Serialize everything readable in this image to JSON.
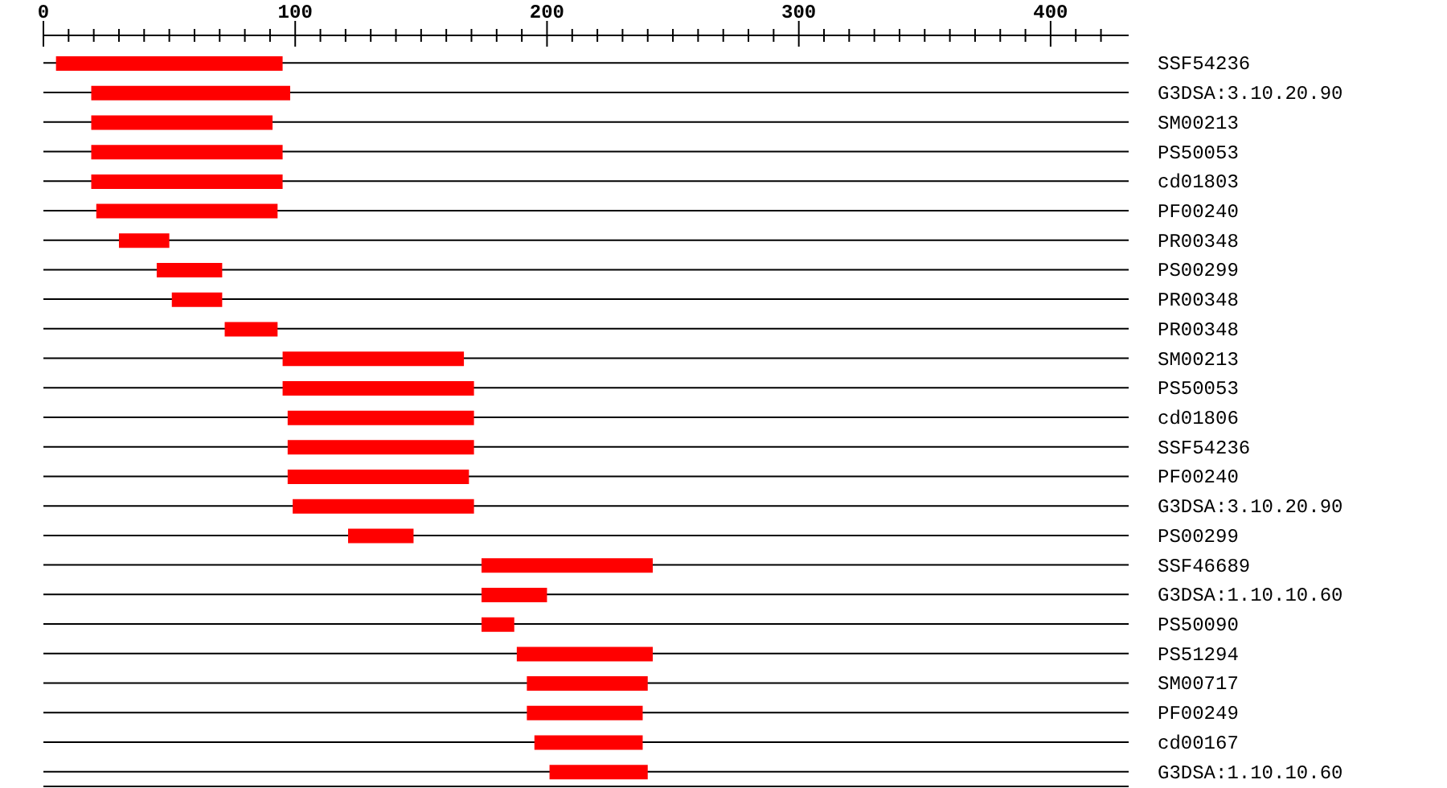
{
  "chart_data": {
    "type": "bar",
    "orientation": "horizontal",
    "color": "#ff0000",
    "grid": "y",
    "categories": [
      "SSF54236",
      "G3DSA:3.10.20.90",
      "SM00213",
      "PS50053",
      "cd01803",
      "PF00240",
      "PR00348",
      "PS00299",
      "PR00348",
      "PR00348",
      "SM00213",
      "PS50053",
      "cd01806",
      "SSF54236",
      "PF00240",
      "G3DSA:3.10.20.90",
      "PS00299",
      "SSF46689",
      "G3DSA:1.10.10.60",
      "PS50090",
      "PS51294",
      "SM00717",
      "PF00249",
      "cd00167",
      "G3DSA:1.10.10.60"
    ],
    "base": [
      5,
      19,
      19,
      19,
      19,
      21,
      30,
      45,
      51,
      72,
      95,
      95,
      97,
      97,
      97,
      99,
      121,
      174,
      174,
      174,
      188,
      192,
      192,
      195,
      201
    ],
    "values": [
      90,
      79,
      72,
      76,
      76,
      72,
      20,
      26,
      20,
      21,
      72,
      76,
      74,
      74,
      72,
      72,
      26,
      68,
      26,
      13,
      54,
      48,
      46,
      43,
      39
    ],
    "xlim": [
      0,
      431
    ],
    "xticks": [
      0,
      {
        "value": 10,
        "label": null
      },
      {
        "value": 20,
        "label": null
      },
      {
        "value": 30,
        "label": null
      },
      {
        "value": 40,
        "label": null
      },
      {
        "value": 50,
        "label": null
      },
      {
        "value": 60,
        "label": null
      },
      {
        "value": 70,
        "label": null
      },
      {
        "value": 80,
        "label": null
      },
      {
        "value": 90,
        "label": null
      },
      100,
      {
        "value": 110,
        "label": null
      },
      {
        "value": 120,
        "label": null
      },
      {
        "value": 130,
        "label": null
      },
      {
        "value": 140,
        "label": null
      },
      {
        "value": 150,
        "label": null
      },
      {
        "value": 160,
        "label": null
      },
      {
        "value": 170,
        "label": null
      },
      {
        "value": 180,
        "label": null
      },
      {
        "value": 190,
        "label": null
      },
      200,
      {
        "value": 210,
        "label": null
      },
      {
        "value": 220,
        "label": null
      },
      {
        "value": 230,
        "label": null
      },
      {
        "value": 240,
        "label": null
      },
      {
        "value": 250,
        "label": null
      },
      {
        "value": 260,
        "label": null
      },
      {
        "value": 270,
        "label": null
      },
      {
        "value": 280,
        "label": null
      },
      {
        "value": 290,
        "label": null
      },
      300,
      {
        "value": 310,
        "label": null
      },
      {
        "value": 320,
        "label": null
      },
      {
        "value": 330,
        "label": null
      },
      {
        "value": 340,
        "label": null
      },
      {
        "value": 350,
        "label": null
      },
      {
        "value": 360,
        "label": null
      },
      {
        "value": 370,
        "label": null
      },
      {
        "value": 380,
        "label": null
      },
      {
        "value": 390,
        "label": null
      },
      400,
      {
        "value": 410,
        "label": null
      },
      {
        "value": 420,
        "label": null
      }
    ]
  }
}
